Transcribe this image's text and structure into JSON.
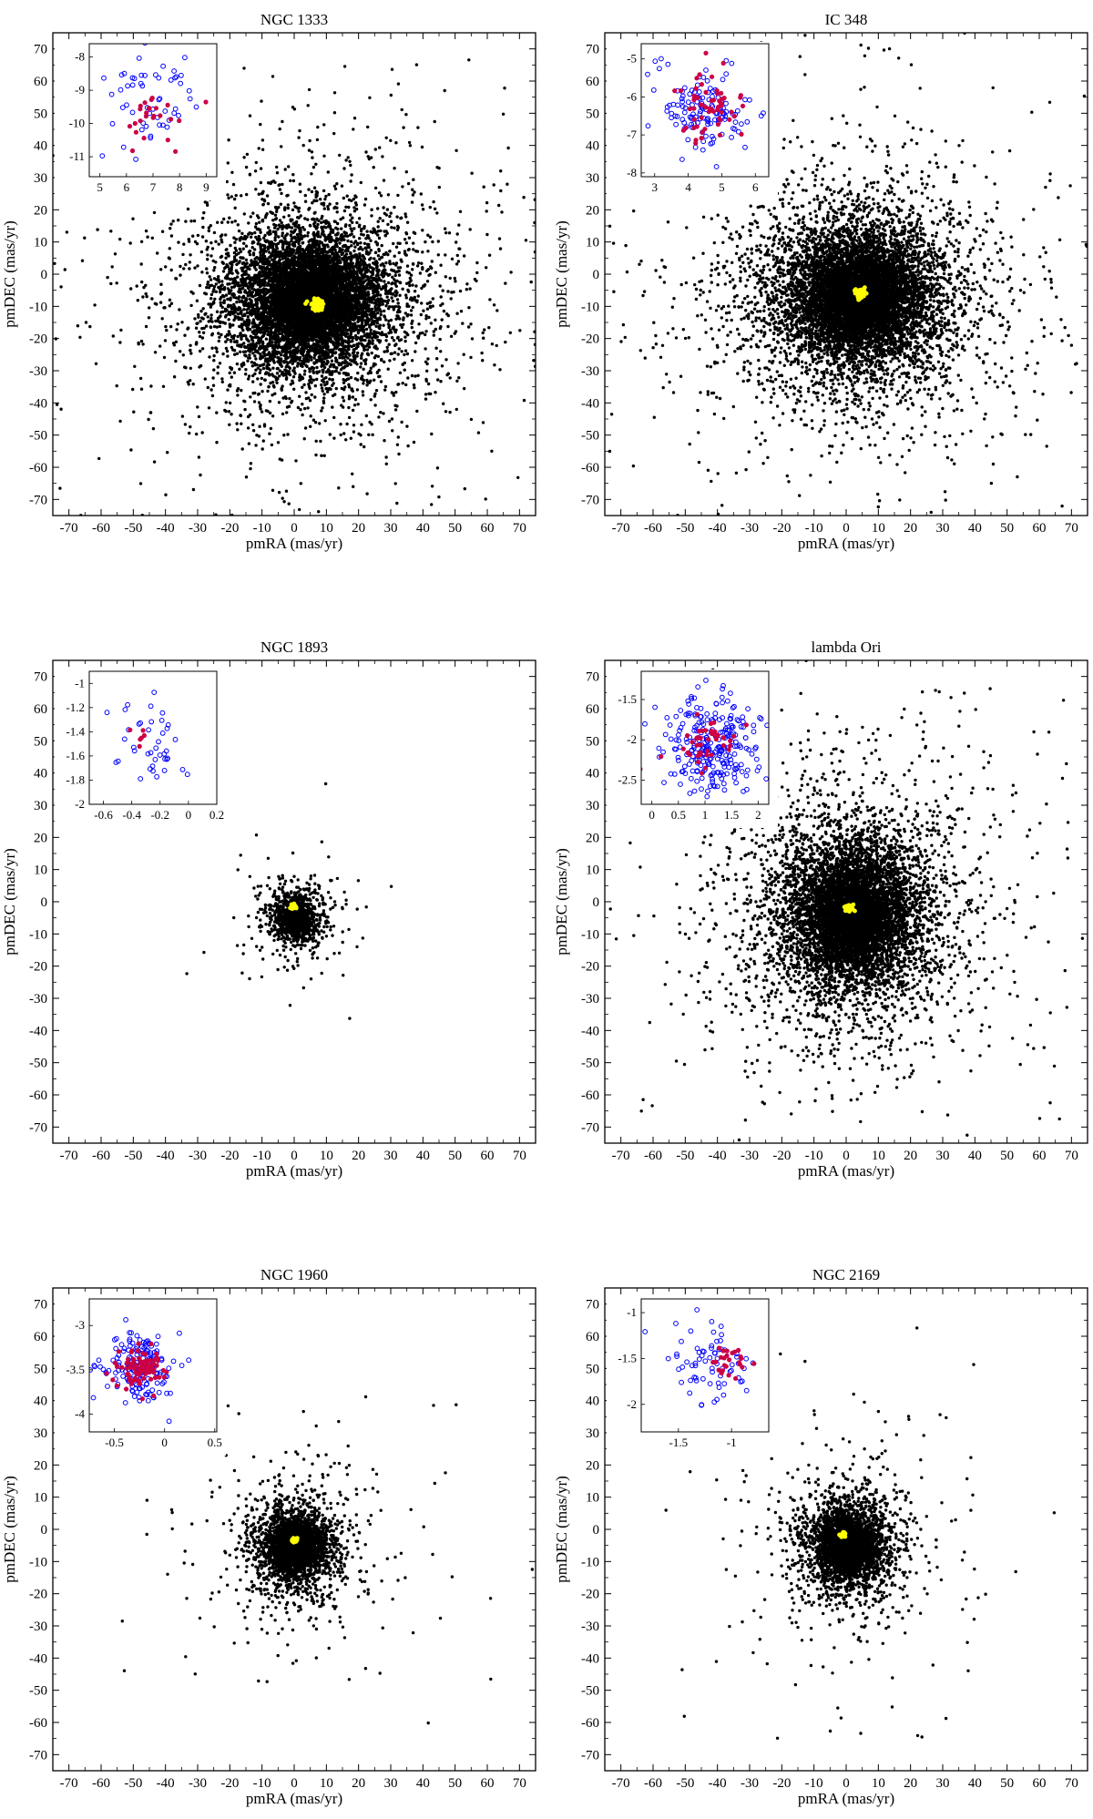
{
  "figure": {
    "description_hidden": ""
  },
  "chart_data": [
    {
      "type": "scatter",
      "title": "NGC 1333",
      "xlabel": "pmRA (mas/yr)",
      "ylabel": "pmDEC (mas/yr)",
      "xlim": [
        -75,
        75
      ],
      "ylim": [
        -75,
        75
      ],
      "xticks": [
        -70,
        -60,
        -50,
        -40,
        -30,
        -20,
        -10,
        0,
        10,
        20,
        30,
        40,
        50,
        60,
        70
      ],
      "yticks": [
        -70,
        -60,
        -50,
        -40,
        -30,
        -20,
        -10,
        0,
        10,
        20,
        30,
        40,
        50,
        60,
        70
      ],
      "field": {
        "color": "#000000",
        "center": [
          5,
          -8
        ],
        "spread": [
          11,
          10
        ],
        "n_stars": 9000,
        "seed": 11
      },
      "cluster": {
        "color": "#ffff00",
        "center": [
          7,
          -9.5
        ],
        "spread": [
          1.0,
          0.7
        ],
        "n": 60
      },
      "inset": {
        "xlim": [
          4.6,
          9.4
        ],
        "ylim": [
          -11.6,
          -7.6
        ],
        "xticks": [
          5,
          6,
          7,
          8,
          9
        ],
        "yticks": [
          -8,
          -9,
          -10,
          -11
        ],
        "members_color": "#0000ff",
        "core_color": "#cc0044",
        "members": {
          "center": [
            7,
            -9.3
          ],
          "spread": [
            0.9,
            0.75
          ],
          "n": 55,
          "seed": 101
        },
        "core": {
          "center": [
            7.1,
            -9.9
          ],
          "spread": [
            0.7,
            0.45
          ],
          "n": 25,
          "seed": 102
        }
      }
    },
    {
      "type": "scatter",
      "title": "IC 348",
      "xlabel": "pmRA (mas/yr)",
      "ylabel": "pmDEC (mas/yr)",
      "xlim": [
        -75,
        75
      ],
      "ylim": [
        -75,
        75
      ],
      "xticks": [
        -70,
        -60,
        -50,
        -40,
        -30,
        -20,
        -10,
        0,
        10,
        20,
        30,
        40,
        50,
        60,
        70
      ],
      "yticks": [
        -70,
        -60,
        -50,
        -40,
        -30,
        -20,
        -10,
        0,
        10,
        20,
        30,
        40,
        50,
        60,
        70
      ],
      "field": {
        "color": "#000000",
        "center": [
          4,
          -7
        ],
        "spread": [
          11,
          10
        ],
        "n_stars": 9000,
        "seed": 22
      },
      "cluster": {
        "color": "#ffff00",
        "center": [
          4.5,
          -6
        ],
        "spread": [
          0.8,
          0.8
        ],
        "n": 60
      },
      "inset": {
        "xlim": [
          2.6,
          6.4
        ],
        "ylim": [
          -8.1,
          -4.6
        ],
        "xticks": [
          3,
          4,
          5,
          6
        ],
        "yticks": [
          -5,
          -6,
          -7,
          -8
        ],
        "members_color": "#0000ff",
        "core_color": "#cc0044",
        "members": {
          "center": [
            4.5,
            -6.3
          ],
          "spread": [
            0.7,
            0.6
          ],
          "n": 130,
          "seed": 201
        },
        "core": {
          "center": [
            4.6,
            -6.2
          ],
          "spread": [
            0.5,
            0.45
          ],
          "n": 60,
          "seed": 202
        }
      }
    },
    {
      "type": "scatter",
      "title": "NGC 1893",
      "xlabel": "pmRA (mas/yr)",
      "ylabel": "pmDEC (mas/yr)",
      "xlim": [
        -75,
        75
      ],
      "ylim": [
        -75,
        75
      ],
      "xticks": [
        -70,
        -60,
        -50,
        -40,
        -30,
        -20,
        -10,
        0,
        10,
        20,
        30,
        40,
        50,
        60,
        70
      ],
      "yticks": [
        -70,
        -60,
        -50,
        -40,
        -30,
        -20,
        -10,
        0,
        10,
        20,
        30,
        40,
        50,
        60,
        70
      ],
      "field": {
        "color": "#000000",
        "center": [
          0.5,
          -5
        ],
        "spread": [
          3.2,
          3.5
        ],
        "n_stars": 1200,
        "seed": 33
      },
      "cluster": {
        "color": "#ffff00",
        "center": [
          -0.3,
          -1.5
        ],
        "spread": [
          0.4,
          0.4
        ],
        "n": 30
      },
      "inset": {
        "xlim": [
          -0.7,
          0.2
        ],
        "ylim": [
          -2.0,
          -0.9
        ],
        "xticks": [
          -0.6,
          -0.4,
          -0.2,
          0,
          0.2
        ],
        "yticks": [
          -1,
          -1.2,
          -1.4,
          -1.6,
          -1.8,
          -2
        ],
        "members_color": "#0000ff",
        "core_color": "#cc0044",
        "members": {
          "center": [
            -0.32,
            -1.45
          ],
          "spread": [
            0.15,
            0.18
          ],
          "n": 40,
          "seed": 301
        },
        "core": {
          "center": [
            -0.35,
            -1.45
          ],
          "spread": [
            0.05,
            0.06
          ],
          "n": 6,
          "seed": 302
        }
      }
    },
    {
      "type": "scatter",
      "title": "lambda Ori",
      "xlabel": "pmRA (mas/yr)",
      "ylabel": "pmDEC (mas/yr)",
      "xlim": [
        -75,
        75
      ],
      "ylim": [
        -75,
        75
      ],
      "xticks": [
        -70,
        -60,
        -50,
        -40,
        -30,
        -20,
        -10,
        0,
        10,
        20,
        30,
        40,
        50,
        60,
        70
      ],
      "yticks": [
        -70,
        -60,
        -50,
        -40,
        -30,
        -20,
        -10,
        0,
        10,
        20,
        30,
        40,
        50,
        60,
        70
      ],
      "field": {
        "color": "#000000",
        "center": [
          2,
          -4
        ],
        "spread": [
          10,
          11
        ],
        "n_stars": 8000,
        "seed": 44
      },
      "cluster": {
        "color": "#ffff00",
        "center": [
          1,
          -2
        ],
        "spread": [
          0.7,
          0.5
        ],
        "n": 50
      },
      "inset": {
        "xlim": [
          -0.2,
          2.2
        ],
        "ylim": [
          -2.8,
          -1.15
        ],
        "xticks": [
          0,
          0.5,
          1,
          1.5,
          2
        ],
        "yticks": [
          -1.5,
          -2,
          -2.5
        ],
        "members_color": "#0000ff",
        "core_color": "#cc0044",
        "members": {
          "center": [
            1.1,
            -2.05
          ],
          "spread": [
            0.45,
            0.3
          ],
          "n": 260,
          "seed": 401
        },
        "core": {
          "center": [
            1.0,
            -2.0
          ],
          "spread": [
            0.35,
            0.15
          ],
          "n": 45,
          "seed": 402
        }
      }
    },
    {
      "type": "scatter",
      "title": "NGC 1960",
      "xlabel": "pmRA (mas/yr)",
      "ylabel": "pmDEC (mas/yr)",
      "xlim": [
        -75,
        75
      ],
      "ylim": [
        -75,
        75
      ],
      "xticks": [
        -70,
        -60,
        -50,
        -40,
        -30,
        -20,
        -10,
        0,
        10,
        20,
        30,
        40,
        50,
        60,
        70
      ],
      "yticks": [
        -70,
        -60,
        -50,
        -40,
        -30,
        -20,
        -10,
        0,
        10,
        20,
        30,
        40,
        50,
        60,
        70
      ],
      "field": {
        "color": "#000000",
        "center": [
          0.5,
          -5
        ],
        "spread": [
          5,
          5
        ],
        "n_stars": 3000,
        "seed": 55
      },
      "cluster": {
        "color": "#ffff00",
        "center": [
          0,
          -3.5
        ],
        "spread": [
          0.4,
          0.4
        ],
        "n": 30
      },
      "inset": {
        "xlim": [
          -0.75,
          0.52
        ],
        "ylim": [
          -4.2,
          -2.7
        ],
        "xticks": [
          -0.5,
          0,
          0.5
        ],
        "yticks": [
          -3,
          -3.5,
          -4
        ],
        "members_color": "#0000ff",
        "core_color": "#cc0044",
        "members": {
          "center": [
            -0.25,
            -3.45
          ],
          "spread": [
            0.17,
            0.2
          ],
          "n": 170,
          "seed": 501
        },
        "core": {
          "center": [
            -0.25,
            -3.48
          ],
          "spread": [
            0.12,
            0.12
          ],
          "n": 90,
          "seed": 502
        }
      }
    },
    {
      "type": "scatter",
      "title": "NGC 2169",
      "xlabel": "pmRA (mas/yr)",
      "ylabel": "pmDEC (mas/yr)",
      "xlim": [
        -75,
        75
      ],
      "ylim": [
        -75,
        75
      ],
      "xticks": [
        -70,
        -60,
        -50,
        -40,
        -30,
        -20,
        -10,
        0,
        10,
        20,
        30,
        40,
        50,
        60,
        70
      ],
      "yticks": [
        -70,
        -60,
        -50,
        -40,
        -30,
        -20,
        -10,
        0,
        10,
        20,
        30,
        40,
        50,
        60,
        70
      ],
      "field": {
        "color": "#000000",
        "center": [
          0.5,
          -5
        ],
        "spread": [
          5.5,
          6
        ],
        "n_stars": 3500,
        "seed": 66
      },
      "cluster": {
        "color": "#ffff00",
        "center": [
          -1,
          -1.5
        ],
        "spread": [
          0.4,
          0.4
        ],
        "n": 30
      },
      "inset": {
        "xlim": [
          -1.85,
          -0.65
        ],
        "ylim": [
          -2.3,
          -0.85
        ],
        "xticks": [
          -1.5,
          -1
        ],
        "yticks": [
          -1,
          -1.5,
          -2
        ],
        "members_color": "#0000ff",
        "core_color": "#cc0044",
        "members": {
          "center": [
            -1.2,
            -1.55
          ],
          "spread": [
            0.2,
            0.22
          ],
          "n": 70,
          "seed": 601
        },
        "core": {
          "center": [
            -1.02,
            -1.55
          ],
          "spread": [
            0.08,
            0.1
          ],
          "n": 25,
          "seed": 602
        }
      }
    }
  ]
}
